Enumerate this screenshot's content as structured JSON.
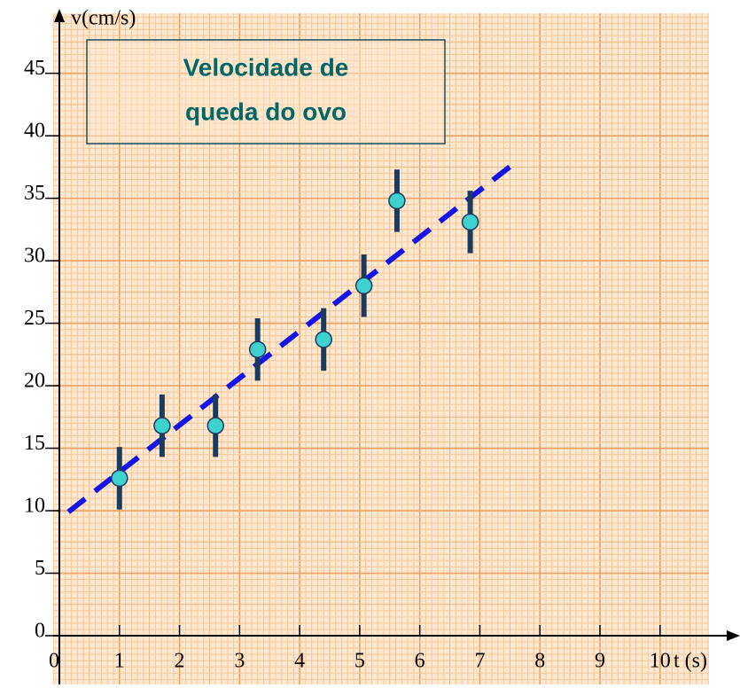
{
  "chart_data": {
    "type": "scatter",
    "title": [
      "Velocidade de",
      "queda do ovo"
    ],
    "x_label": "t (s)",
    "y_label": "v(cm/s)",
    "x": [
      1.0,
      1.71,
      2.6,
      3.3,
      4.4,
      5.07,
      5.62,
      6.84
    ],
    "values": [
      12.6,
      16.8,
      16.8,
      22.9,
      23.7,
      28.0,
      34.8,
      33.1
    ],
    "errors": [
      2.5,
      2.5,
      2.5,
      2.5,
      2.5,
      2.5,
      2.5,
      2.5
    ],
    "color": "#3fd0d0",
    "error_color": "#1b3b5e",
    "trend": {
      "x": [
        0.15,
        7.6
      ],
      "values": [
        9.9,
        37.9
      ],
      "color": "#1414e6"
    },
    "xlim": [
      0,
      10.8
    ],
    "ylim": [
      0,
      49.8
    ],
    "xticks": [
      0,
      1,
      2,
      3,
      4,
      5,
      6,
      7,
      8,
      9,
      10
    ],
    "yticks": [
      0,
      5,
      10,
      15,
      20,
      25,
      30,
      35,
      40,
      45
    ]
  }
}
